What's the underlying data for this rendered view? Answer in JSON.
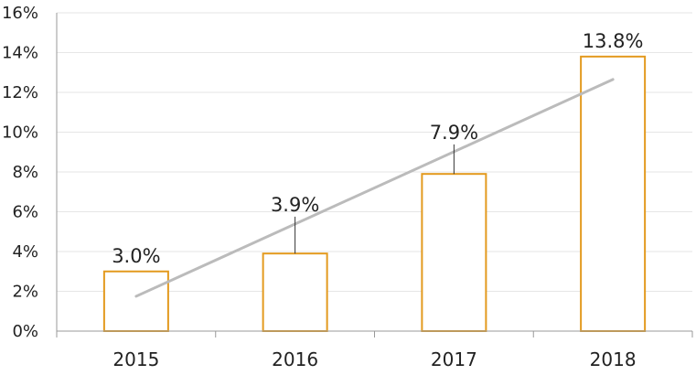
{
  "chart_data": {
    "type": "bar",
    "title": "",
    "xlabel": "",
    "ylabel": "",
    "categories": [
      "2015",
      "2016",
      "2017",
      "2018"
    ],
    "values": [
      3.0,
      3.9,
      7.9,
      13.8
    ],
    "data_labels": [
      "3.0%",
      "3.9%",
      "7.9%",
      "13.8%"
    ],
    "ylim": [
      0,
      16
    ],
    "yticks": [
      0,
      2,
      4,
      6,
      8,
      10,
      12,
      14,
      16
    ],
    "ytick_labels": [
      "0%",
      "2%",
      "4%",
      "6%",
      "8%",
      "10%",
      "12%",
      "14%",
      "16%"
    ],
    "grid": true,
    "legend": "none",
    "trendline": {
      "type": "linear",
      "start": 1.75,
      "end": 12.65
    },
    "colors": {
      "bar_edge": "#E39A1F",
      "bar_fill": "#FFFFFF",
      "trendline": "#BBBBBB",
      "grid": "#E6E6E6",
      "axis": "#999999",
      "leader": "#333333"
    }
  }
}
